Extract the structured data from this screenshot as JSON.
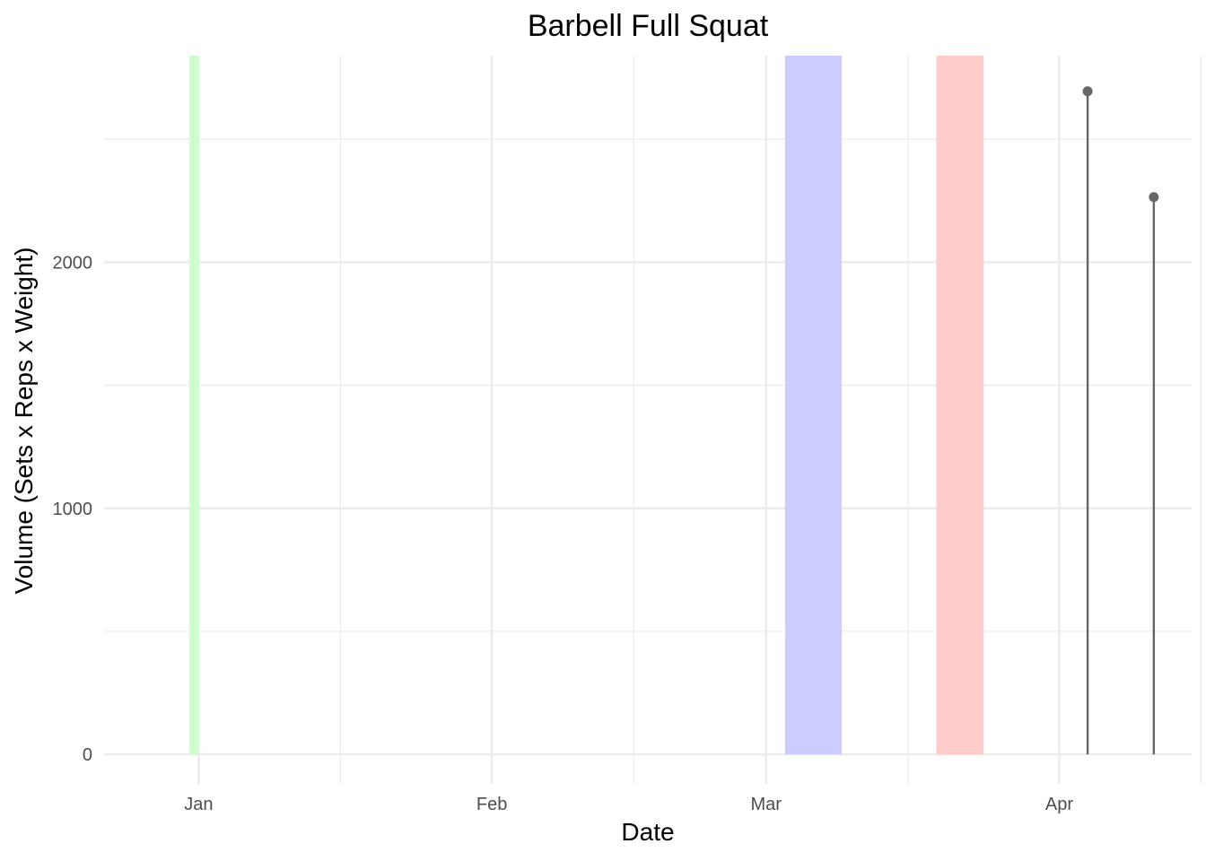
{
  "chart_data": {
    "type": "scatter",
    "title": "Barbell Full Squat",
    "xlabel": "Date",
    "ylabel": "Volume (Sets x Reps x Weight)",
    "x_axis": {
      "type": "date",
      "domain": [
        "2023-12-22",
        "2024-04-15"
      ],
      "major_ticks": [
        "2024-01-01",
        "2024-02-01",
        "2024-03-01",
        "2024-04-01"
      ],
      "tick_labels": [
        "Jan",
        "Feb",
        "Mar",
        "Apr"
      ],
      "minor_ticks": [
        "2024-01-16",
        "2024-02-16",
        "2024-03-16",
        "2024-04-16"
      ]
    },
    "y_axis": {
      "major_ticks": [
        0,
        1000,
        2000
      ],
      "tick_labels": [
        "0",
        "1000",
        "2000"
      ],
      "minor_ticks": [
        500,
        1500,
        2500
      ],
      "ylim": [
        -120,
        2840
      ]
    },
    "grid": true,
    "shaded_periods": [
      {
        "start": "2023-12-31",
        "end": "2024-01-01",
        "color": "#ccffcc"
      },
      {
        "start": "2024-03-03",
        "end": "2024-03-09",
        "color": "#ccccff"
      },
      {
        "start": "2024-03-19",
        "end": "2024-03-24",
        "color": "#ffcccc"
      }
    ],
    "series": [
      {
        "x": [
          "2024-04-04",
          "2024-04-11"
        ],
        "values": [
          2695,
          2265
        ],
        "color": "#666666"
      }
    ]
  }
}
